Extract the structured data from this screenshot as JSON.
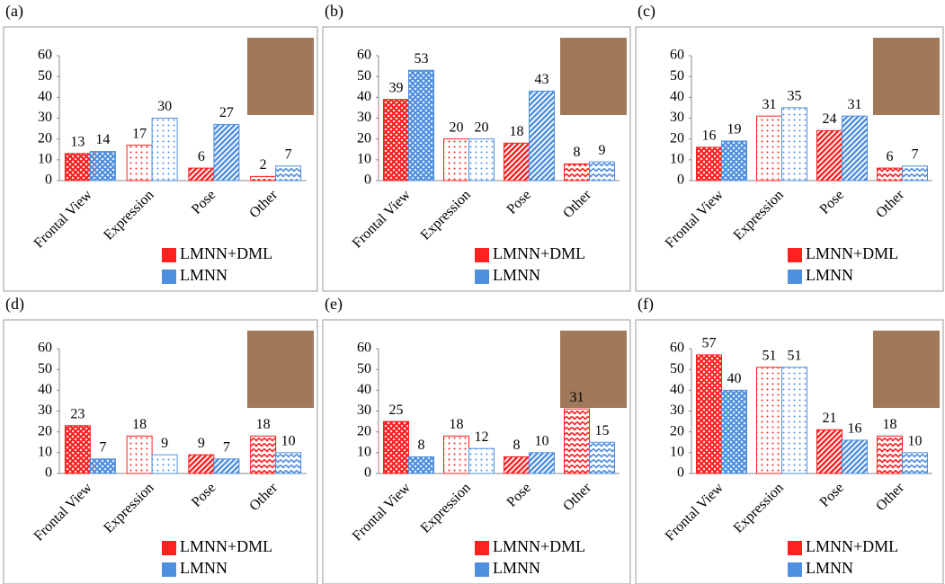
{
  "chart_data": [
    {
      "type": "bar",
      "panel_label": "(a)",
      "categories": [
        "Frontal View",
        "Expression",
        "Pose",
        "Other"
      ],
      "series": [
        {
          "name": "LMNN+DML",
          "color": "#ff2020",
          "values": [
            13,
            17,
            6,
            2
          ]
        },
        {
          "name": "LMNN",
          "color": "#4f8fdf",
          "values": [
            14,
            30,
            27,
            7
          ]
        }
      ],
      "ylim": [
        0,
        60
      ],
      "yticks": [
        0,
        10,
        20,
        30,
        40,
        50,
        60
      ]
    },
    {
      "type": "bar",
      "panel_label": "(b)",
      "categories": [
        "Frontal View",
        "Expression",
        "Pose",
        "Other"
      ],
      "series": [
        {
          "name": "LMNN+DML",
          "color": "#ff2020",
          "values": [
            39,
            20,
            18,
            8
          ]
        },
        {
          "name": "LMNN",
          "color": "#4f8fdf",
          "values": [
            53,
            20,
            43,
            9
          ]
        }
      ],
      "ylim": [
        0,
        60
      ],
      "yticks": [
        0,
        10,
        20,
        30,
        40,
        50,
        60
      ]
    },
    {
      "type": "bar",
      "panel_label": "(c)",
      "categories": [
        "Frontal View",
        "Expression",
        "Pose",
        "Other"
      ],
      "series": [
        {
          "name": "LMNN+DML",
          "color": "#ff2020",
          "values": [
            16,
            31,
            24,
            6
          ]
        },
        {
          "name": "LMNN",
          "color": "#4f8fdf",
          "values": [
            19,
            35,
            31,
            7
          ]
        }
      ],
      "ylim": [
        0,
        60
      ],
      "yticks": [
        0,
        10,
        20,
        30,
        40,
        50,
        60
      ]
    },
    {
      "type": "bar",
      "panel_label": "(d)",
      "categories": [
        "Frontal View",
        "Expression",
        "Pose",
        "Other"
      ],
      "series": [
        {
          "name": "LMNN+DML",
          "color": "#ff2020",
          "values": [
            23,
            18,
            9,
            18
          ]
        },
        {
          "name": "LMNN",
          "color": "#4f8fdf",
          "values": [
            7,
            9,
            7,
            10
          ]
        }
      ],
      "ylim": [
        0,
        60
      ],
      "yticks": [
        0,
        10,
        20,
        30,
        40,
        50,
        60
      ]
    },
    {
      "type": "bar",
      "panel_label": "(e)",
      "categories": [
        "Frontal View",
        "Expression",
        "Pose",
        "Other"
      ],
      "series": [
        {
          "name": "LMNN+DML",
          "color": "#ff2020",
          "values": [
            25,
            18,
            8,
            31
          ]
        },
        {
          "name": "LMNN",
          "color": "#4f8fdf",
          "values": [
            8,
            12,
            10,
            15
          ]
        }
      ],
      "ylim": [
        0,
        60
      ],
      "yticks": [
        0,
        10,
        20,
        30,
        40,
        50,
        60
      ]
    },
    {
      "type": "bar",
      "panel_label": "(f)",
      "categories": [
        "Frontal View",
        "Expression",
        "Pose",
        "Other"
      ],
      "series": [
        {
          "name": "LMNN+DML",
          "color": "#ff2020",
          "values": [
            57,
            51,
            21,
            18
          ]
        },
        {
          "name": "LMNN",
          "color": "#4f8fdf",
          "values": [
            40,
            51,
            16,
            10
          ]
        }
      ],
      "ylim": [
        0,
        60
      ],
      "yticks": [
        0,
        10,
        20,
        30,
        40,
        50,
        60
      ]
    }
  ]
}
